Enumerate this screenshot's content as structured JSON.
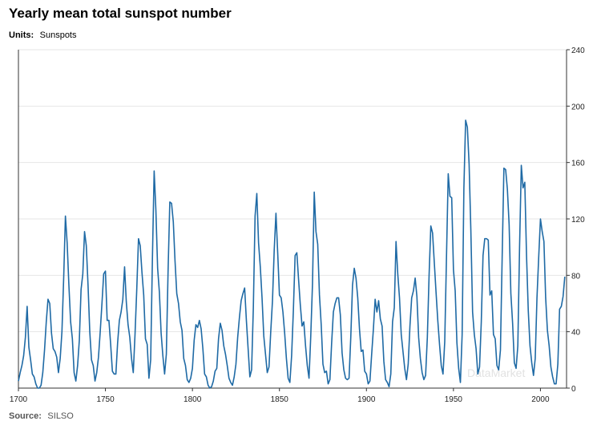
{
  "header": {
    "title": "Yearly mean total sunspot number",
    "units_label": "Units:",
    "units_value": "Sunspots"
  },
  "footer": {
    "source_label": "Source:",
    "source_value": "SILSO"
  },
  "watermark": "DataMarket",
  "colors": {
    "line": "#1f6aa5",
    "grid": "#e6e6e6",
    "axis": "#333333",
    "watermark": "#e2e2e2"
  },
  "chart_data": {
    "type": "line",
    "title": "Yearly mean total sunspot number",
    "xlabel": "",
    "ylabel": "Sunspots",
    "xlim": [
      1700,
      2015
    ],
    "ylim": [
      0,
      240
    ],
    "x_ticks": [
      1700,
      1750,
      1800,
      1850,
      1900,
      1950,
      2000
    ],
    "y_ticks": [
      0,
      40,
      80,
      120,
      160,
      200,
      240
    ],
    "y_axis_side": "right",
    "grid": true,
    "legend": "none",
    "series": [
      {
        "x_start": 1700,
        "values": [
          5,
          11,
          16,
          23,
          36,
          58,
          29,
          20,
          10,
          8,
          3,
          0,
          0,
          2,
          11,
          27,
          47,
          63,
          60,
          39,
          28,
          26,
          22,
          11,
          21,
          40,
          78,
          122,
          103,
          73,
          47,
          35,
          11,
          5,
          16,
          34,
          70,
          81,
          111,
          101,
          73,
          40,
          20,
          16,
          5,
          11,
          22,
          40,
          60,
          81,
          83,
          48,
          48,
          31,
          12,
          10,
          10,
          32,
          48,
          54,
          63,
          86,
          61,
          45,
          36,
          21,
          11,
          38,
          70,
          106,
          101,
          82,
          66,
          35,
          31,
          7,
          20,
          92,
          154,
          126,
          85,
          68,
          39,
          23,
          10,
          24,
          83,
          132,
          131,
          118,
          90,
          67,
          60,
          47,
          41,
          21,
          16,
          6,
          4,
          7,
          14,
          34,
          45,
          43,
          48,
          42,
          28,
          10,
          8,
          2,
          0,
          1,
          5,
          12,
          14,
          35,
          46,
          41,
          30,
          24,
          16,
          7,
          4,
          2,
          8,
          17,
          36,
          50,
          62,
          67,
          71,
          48,
          28,
          8,
          13,
          57,
          122,
          138,
          103,
          86,
          64,
          37,
          24,
          11,
          15,
          40,
          62,
          98,
          124,
          96,
          66,
          64,
          54,
          39,
          21,
          7,
          4,
          23,
          55,
          94,
          96,
          77,
          59,
          44,
          47,
          30,
          16,
          7,
          37,
          74,
          139,
          111,
          102,
          66,
          45,
          17,
          11,
          12,
          3,
          6,
          32,
          54,
          60,
          64,
          64,
          52,
          25,
          13,
          7,
          6,
          7,
          36,
          73,
          85,
          78,
          64,
          42,
          26,
          27,
          12,
          10,
          3,
          5,
          24,
          42,
          63,
          54,
          62,
          49,
          44,
          19,
          6,
          4,
          1,
          10,
          47,
          57,
          104,
          81,
          64,
          38,
          26,
          14,
          6,
          17,
          44,
          64,
          69,
          78,
          65,
          36,
          21,
          11,
          6,
          9,
          36,
          80,
          115,
          110,
          89,
          68,
          48,
          31,
          16,
          10,
          33,
          93,
          152,
          136,
          135,
          84,
          69,
          32,
          14,
          4,
          38,
          142,
          190,
          185,
          159,
          112,
          54,
          38,
          28,
          10,
          15,
          47,
          94,
          106,
          106,
          105,
          66,
          69,
          38,
          35,
          16,
          13,
          27,
          93,
          156,
          155,
          141,
          116,
          67,
          46,
          18,
          14,
          30,
          100,
          158,
          142,
          146,
          94,
          55,
          30,
          18,
          9,
          21,
          64,
          93,
          120,
          111,
          104,
          64,
          41,
          30,
          15,
          8,
          3,
          3,
          17,
          56,
          58,
          65,
          79
        ]
      }
    ]
  }
}
